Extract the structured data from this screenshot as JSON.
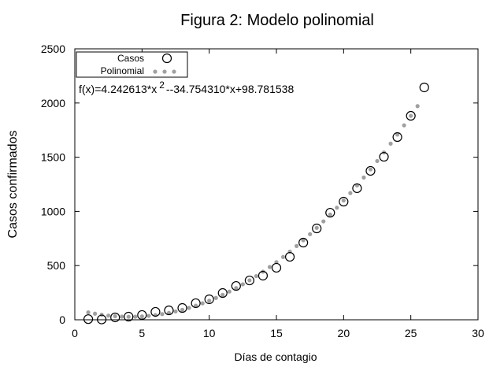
{
  "chart_data": {
    "type": "scatter",
    "title": "Figura 2: Modelo polinomial",
    "xlabel": "Días de contagio",
    "ylabel": "Casos confirmados",
    "xlim": [
      0,
      30
    ],
    "ylim": [
      0,
      2500
    ],
    "xticks": [
      0,
      5,
      10,
      15,
      20,
      25,
      30
    ],
    "yticks": [
      0,
      500,
      1000,
      1500,
      2000,
      2500
    ],
    "grid": false,
    "legend": "top-left",
    "annotation": {
      "text": "f(x)=4.242613*x",
      "sup": "2",
      "rest": "--34.754310*x+98.781538"
    },
    "series": [
      {
        "name": "Casos",
        "marker": "open-circle",
        "color": "#000000",
        "x": [
          1,
          2,
          3,
          4,
          5,
          6,
          7,
          8,
          9,
          10,
          11,
          12,
          13,
          14,
          15,
          16,
          17,
          18,
          19,
          20,
          21,
          22,
          23,
          24,
          25,
          26
        ],
        "y": [
          6,
          3,
          22,
          29,
          44,
          73,
          87,
          109,
          153,
          189,
          247,
          312,
          363,
          407,
          480,
          581,
          712,
          843,
          988,
          1090,
          1214,
          1374,
          1504,
          1686,
          1882,
          2144
        ]
      },
      {
        "name": "Polinomial",
        "marker": "filled-dot",
        "color": "#a0a0a0",
        "coefficients": [
          4.242613,
          -34.75431,
          98.781538
        ],
        "x_range": [
          1,
          25.5
        ],
        "x_step": 0.5
      }
    ]
  }
}
